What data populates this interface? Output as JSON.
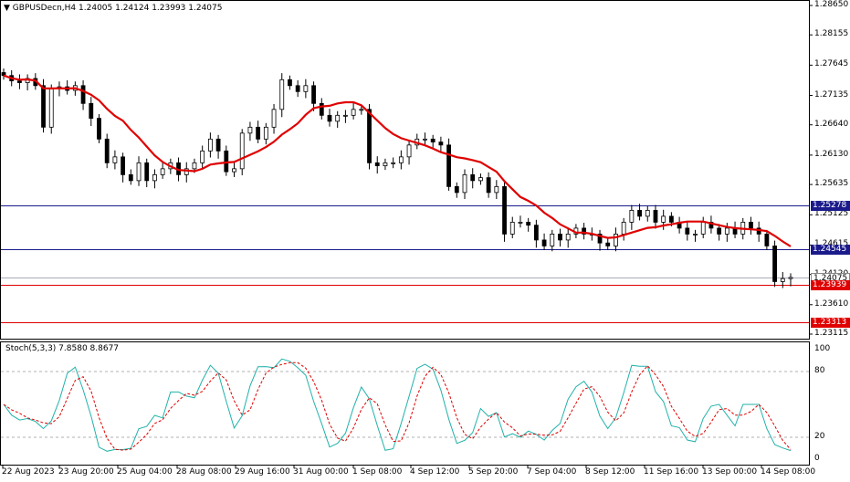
{
  "header": {
    "symbol": "GBPUSDecn,H4",
    "ohlc": "1.24005 1.24124 1.23993 1.24075",
    "arrow": "▼"
  },
  "price_axis": {
    "ticks": [
      "1.28650",
      "1.28155",
      "1.27645",
      "1.27135",
      "1.26640",
      "1.26130",
      "1.25635",
      "1.25125",
      "1.24615",
      "1.24120",
      "1.23610",
      "1.23115"
    ],
    "range": [
      1.23115,
      1.2865
    ]
  },
  "levels": [
    {
      "label": "1.25278",
      "value": 1.25278,
      "color": "#1a1a8c"
    },
    {
      "label": "1.24545",
      "value": 1.24545,
      "color": "#1a1a8c"
    },
    {
      "label": "1.24075",
      "value": 1.24075,
      "color": "#a9a9b8",
      "current": true
    },
    {
      "label": "1.23939",
      "value": 1.23939,
      "color": "#e00000"
    },
    {
      "label": "1.23313",
      "value": 1.23313,
      "color": "#e00000"
    }
  ],
  "stoch_panel": {
    "title": "Stoch(5,3,3) 7.8580 8.8677",
    "ticks": [
      "100",
      "80",
      "20",
      "0"
    ],
    "main_color": "#20b2aa",
    "signal_color": "#e00000"
  },
  "time_axis": [
    "22 Aug 2023",
    "23 Aug 20:00",
    "25 Aug 04:00",
    "28 Aug 08:00",
    "29 Aug 16:00",
    "31 Aug 00:00",
    "1 Sep 08:00",
    "4 Sep 12:00",
    "5 Sep 20:00",
    "7 Sep 04:00",
    "8 Sep 12:00",
    "11 Sep 16:00",
    "13 Sep 00:00",
    "14 Sep 08:00"
  ],
  "colors": {
    "ma": "#e00000",
    "candle": "#000000",
    "grid": "#c0c0c0"
  },
  "chart_data": {
    "type": "candlestick",
    "symbol": "GBPUSDecn",
    "timeframe": "H4",
    "ylim": [
      1.23115,
      1.2865
    ],
    "candles_close": [
      1.2747,
      1.2738,
      1.2735,
      1.2742,
      1.273,
      1.266,
      1.2725,
      1.2728,
      1.2722,
      1.273,
      1.27,
      1.2675,
      1.264,
      1.26,
      1.261,
      1.258,
      1.257,
      1.26,
      1.257,
      1.258,
      1.259,
      1.26,
      1.258,
      1.259,
      1.26,
      1.262,
      1.264,
      1.262,
      1.2585,
      1.259,
      1.265,
      1.266,
      1.264,
      1.266,
      1.269,
      1.274,
      1.273,
      1.272,
      1.273,
      1.27,
      1.268,
      1.267,
      1.268,
      1.268,
      1.269,
      1.269,
      1.26,
      1.2595,
      1.26,
      1.26,
      1.261,
      1.263,
      1.264,
      1.264,
      1.2635,
      1.263,
      1.256,
      1.255,
      1.258,
      1.257,
      1.2575,
      1.255,
      1.256,
      1.248,
      1.25,
      1.25,
      1.2495,
      1.247,
      1.246,
      1.248,
      1.247,
      1.248,
      1.249,
      1.248,
      1.248,
      1.2465,
      1.246,
      1.248,
      1.25,
      1.252,
      1.251,
      1.252,
      1.25,
      1.251,
      1.25,
      1.249,
      1.248,
      1.248,
      1.25,
      1.249,
      1.248,
      1.249,
      1.248,
      1.25,
      1.249,
      1.248,
      1.246,
      1.24,
      1.2405,
      1.2407
    ],
    "moving_average_color": "#e00000",
    "horizontal_levels": [
      1.25278,
      1.24545,
      1.23939,
      1.23313
    ],
    "current_price": 1.24075,
    "stochastic": {
      "params": "5,3,3",
      "main": 7.858,
      "signal": 8.8677,
      "levels": [
        80,
        20
      ],
      "ylim": [
        0,
        100
      ]
    }
  }
}
